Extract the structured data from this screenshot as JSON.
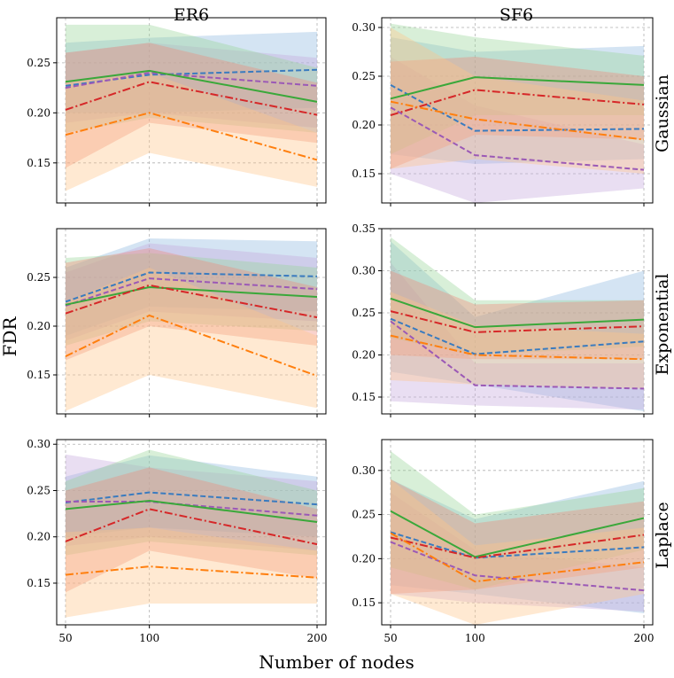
{
  "chart_data": {
    "type": "line",
    "ylabel": "FDR",
    "xlabel": "Number of nodes",
    "columns": [
      "ER6",
      "SF6"
    ],
    "rows": [
      "Gaussian",
      "Exponential",
      "Laplace"
    ],
    "x": [
      50,
      100,
      200
    ],
    "x_tick_labels": [
      "50",
      "100",
      "200"
    ],
    "series_styles": [
      {
        "name": "series-blue",
        "color": "#3a7bbf",
        "band": "#8fb8df",
        "dash": "6,3"
      },
      {
        "name": "series-purple",
        "color": "#9b59b6",
        "band": "#c6a8dc",
        "dash": "6,3"
      },
      {
        "name": "series-green",
        "color": "#3aa83a",
        "band": "#98d498",
        "dash": ""
      },
      {
        "name": "series-red",
        "color": "#d62728",
        "band": "#f08a7a",
        "dash": "9,3,2,3"
      },
      {
        "name": "series-orange",
        "color": "#ff7f0e",
        "band": "#ffc48a",
        "dash": "9,3,2,3"
      }
    ],
    "panels": [
      {
        "col": "ER6",
        "row": "Gaussian",
        "ylim": [
          0.11,
          0.295
        ],
        "yticks": [
          0.15,
          0.2,
          0.25
        ],
        "series": [
          {
            "name": "series-blue",
            "values": [
              0.227,
              0.238,
              0.243
            ],
            "lower": [
              0.2,
              0.2,
              0.205
            ],
            "upper": [
              0.27,
              0.275,
              0.281
            ]
          },
          {
            "name": "series-purple",
            "values": [
              0.225,
              0.24,
              0.227
            ],
            "lower": [
              0.19,
              0.2,
              0.185
            ],
            "upper": [
              0.26,
              0.27,
              0.255
            ]
          },
          {
            "name": "series-green",
            "values": [
              0.231,
              0.242,
              0.211
            ],
            "lower": [
              0.18,
              0.195,
              0.18
            ],
            "upper": [
              0.288,
              0.288,
              0.245
            ]
          },
          {
            "name": "series-red",
            "values": [
              0.203,
              0.231,
              0.198
            ],
            "lower": [
              0.145,
              0.19,
              0.17
            ],
            "upper": [
              0.26,
              0.27,
              0.23
            ]
          },
          {
            "name": "series-orange",
            "values": [
              0.178,
              0.2,
              0.153
            ],
            "lower": [
              0.122,
              0.16,
              0.126
            ],
            "upper": [
              0.23,
              0.24,
              0.18
            ]
          }
        ]
      },
      {
        "col": "SF6",
        "row": "Gaussian",
        "ylim": [
          0.12,
          0.31
        ],
        "yticks": [
          0.15,
          0.2,
          0.25,
          0.3
        ],
        "series": [
          {
            "name": "series-blue",
            "values": [
              0.241,
              0.194,
              0.196
            ],
            "lower": [
              0.17,
              0.16,
              0.165
            ],
            "upper": [
              0.29,
              0.275,
              0.281
            ]
          },
          {
            "name": "series-purple",
            "values": [
              0.218,
              0.169,
              0.154
            ],
            "lower": [
              0.15,
              0.12,
              0.135
            ],
            "upper": [
              0.27,
              0.22,
              0.18
            ]
          },
          {
            "name": "series-green",
            "values": [
              0.227,
              0.249,
              0.241
            ],
            "lower": [
              0.17,
              0.21,
              0.21
            ],
            "upper": [
              0.304,
              0.29,
              0.271
            ]
          },
          {
            "name": "series-red",
            "values": [
              0.21,
              0.236,
              0.221
            ],
            "lower": [
              0.155,
              0.19,
              0.185
            ],
            "upper": [
              0.265,
              0.27,
              0.25
            ]
          },
          {
            "name": "series-orange",
            "values": [
              0.224,
              0.206,
              0.185
            ],
            "lower": [
              0.155,
              0.165,
              0.15
            ],
            "upper": [
              0.3,
              0.25,
              0.225
            ]
          }
        ]
      },
      {
        "col": "ER6",
        "row": "Exponential",
        "ylim": [
          0.11,
          0.3
        ],
        "yticks": [
          0.15,
          0.2,
          0.25
        ],
        "series": [
          {
            "name": "series-blue",
            "values": [
              0.225,
              0.255,
              0.251
            ],
            "lower": [
              0.19,
              0.22,
              0.215
            ],
            "upper": [
              0.26,
              0.29,
              0.287
            ]
          },
          {
            "name": "series-purple",
            "values": [
              0.221,
              0.249,
              0.238
            ],
            "lower": [
              0.185,
              0.215,
              0.205
            ],
            "upper": [
              0.255,
              0.285,
              0.27
            ]
          },
          {
            "name": "series-green",
            "values": [
              0.222,
              0.24,
              0.23
            ],
            "lower": [
              0.18,
              0.205,
              0.195
            ],
            "upper": [
              0.27,
              0.275,
              0.26
            ]
          },
          {
            "name": "series-red",
            "values": [
              0.213,
              0.242,
              0.209
            ],
            "lower": [
              0.165,
              0.2,
              0.18
            ],
            "upper": [
              0.265,
              0.28,
              0.24
            ]
          },
          {
            "name": "series-orange",
            "values": [
              0.169,
              0.211,
              0.149
            ],
            "lower": [
              0.113,
              0.15,
              0.116
            ],
            "upper": [
              0.225,
              0.26,
              0.19
            ]
          }
        ]
      },
      {
        "col": "SF6",
        "row": "Exponential",
        "ylim": [
          0.13,
          0.35
        ],
        "yticks": [
          0.15,
          0.2,
          0.25,
          0.3,
          0.35
        ],
        "series": [
          {
            "name": "series-blue",
            "values": [
              0.243,
              0.201,
              0.216
            ],
            "lower": [
              0.18,
              0.165,
              0.133
            ],
            "upper": [
              0.335,
              0.245,
              0.3
            ]
          },
          {
            "name": "series-purple",
            "values": [
              0.24,
              0.164,
              0.16
            ],
            "lower": [
              0.145,
              0.14,
              0.135
            ],
            "upper": [
              0.31,
              0.19,
              0.19
            ]
          },
          {
            "name": "series-green",
            "values": [
              0.267,
              0.233,
              0.242
            ],
            "lower": [
              0.22,
              0.2,
              0.21
            ],
            "upper": [
              0.34,
              0.265,
              0.265
            ]
          },
          {
            "name": "series-red",
            "values": [
              0.252,
              0.227,
              0.234
            ],
            "lower": [
              0.2,
              0.195,
              0.195
            ],
            "upper": [
              0.3,
              0.26,
              0.265
            ]
          },
          {
            "name": "series-orange",
            "values": [
              0.223,
              0.2,
              0.195
            ],
            "lower": [
              0.17,
              0.165,
              0.16
            ],
            "upper": [
              0.275,
              0.235,
              0.225
            ]
          }
        ]
      },
      {
        "col": "ER6",
        "row": "Laplace",
        "ylim": [
          0.105,
          0.305
        ],
        "yticks": [
          0.15,
          0.2,
          0.25,
          0.3
        ],
        "series": [
          {
            "name": "series-blue",
            "values": [
              0.237,
              0.248,
              0.235
            ],
            "lower": [
              0.2,
              0.21,
              0.2
            ],
            "upper": [
              0.265,
              0.288,
              0.265
            ]
          },
          {
            "name": "series-purple",
            "values": [
              0.238,
              0.238,
              0.223
            ],
            "lower": [
              0.19,
              0.2,
              0.185
            ],
            "upper": [
              0.289,
              0.275,
              0.26
            ]
          },
          {
            "name": "series-green",
            "values": [
              0.23,
              0.239,
              0.216
            ],
            "lower": [
              0.18,
              0.195,
              0.18
            ],
            "upper": [
              0.26,
              0.294,
              0.25
            ]
          },
          {
            "name": "series-red",
            "values": [
              0.195,
              0.23,
              0.192
            ],
            "lower": [
              0.14,
              0.185,
              0.155
            ],
            "upper": [
              0.25,
              0.275,
              0.23
            ]
          },
          {
            "name": "series-orange",
            "values": [
              0.159,
              0.168,
              0.156
            ],
            "lower": [
              0.113,
              0.128,
              0.128
            ],
            "upper": [
              0.205,
              0.21,
              0.185
            ]
          }
        ]
      },
      {
        "col": "SF6",
        "row": "Laplace",
        "ylim": [
          0.125,
          0.335
        ],
        "yticks": [
          0.15,
          0.2,
          0.25,
          0.3
        ],
        "series": [
          {
            "name": "series-blue",
            "values": [
              0.23,
              0.201,
              0.213
            ],
            "lower": [
              0.17,
              0.16,
              0.138
            ],
            "upper": [
              0.29,
              0.245,
              0.288
            ]
          },
          {
            "name": "series-purple",
            "values": [
              0.219,
              0.181,
              0.164
            ],
            "lower": [
              0.16,
              0.15,
              0.14
            ],
            "upper": [
              0.275,
              0.21,
              0.19
            ]
          },
          {
            "name": "series-green",
            "values": [
              0.254,
              0.202,
              0.246
            ],
            "lower": [
              0.19,
              0.165,
              0.21
            ],
            "upper": [
              0.322,
              0.25,
              0.28
            ]
          },
          {
            "name": "series-red",
            "values": [
              0.224,
              0.201,
              0.227
            ],
            "lower": [
              0.16,
              0.165,
              0.19
            ],
            "upper": [
              0.29,
              0.24,
              0.265
            ]
          },
          {
            "name": "series-orange",
            "values": [
              0.229,
              0.174,
              0.196
            ],
            "lower": [
              0.16,
              0.125,
              0.16
            ],
            "upper": [
              0.29,
              0.215,
              0.235
            ]
          }
        ]
      }
    ]
  }
}
